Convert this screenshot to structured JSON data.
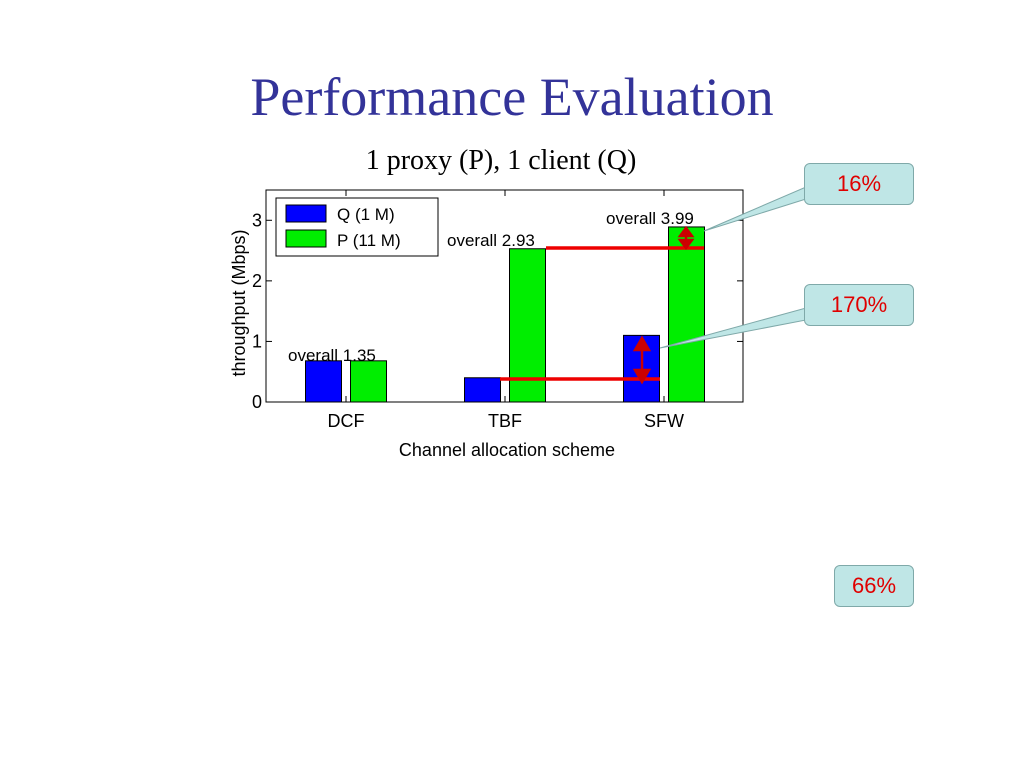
{
  "slide": {
    "title": "Performance Evaluation",
    "subtitle": "1 proxy (P), 1 client (Q)"
  },
  "callouts": {
    "c16": "16%",
    "c170": "170%",
    "c66": "66%"
  },
  "chart_data": {
    "type": "bar",
    "categories": [
      "DCF",
      "TBF",
      "SFW"
    ],
    "series": [
      {
        "name": "Q (1 M)",
        "values": [
          0.68,
          0.4,
          1.1
        ],
        "color": "#0000ff"
      },
      {
        "name": "P (11 M)",
        "values": [
          0.68,
          2.53,
          2.89
        ],
        "color": "#00ee00"
      }
    ],
    "xlabel": "Channel allocation scheme",
    "ylabel": "throughput (Mbps)",
    "ylim": [
      0,
      3.5
    ],
    "yticks": [
      0,
      1,
      2,
      3
    ],
    "grid": false,
    "legend_position": "top-left",
    "annotations": [
      "overall 1.35",
      "overall 2.93",
      "overall 3.99"
    ],
    "colors": {
      "reference_lines": "#ee0000",
      "arrows": "#ee0000"
    }
  }
}
